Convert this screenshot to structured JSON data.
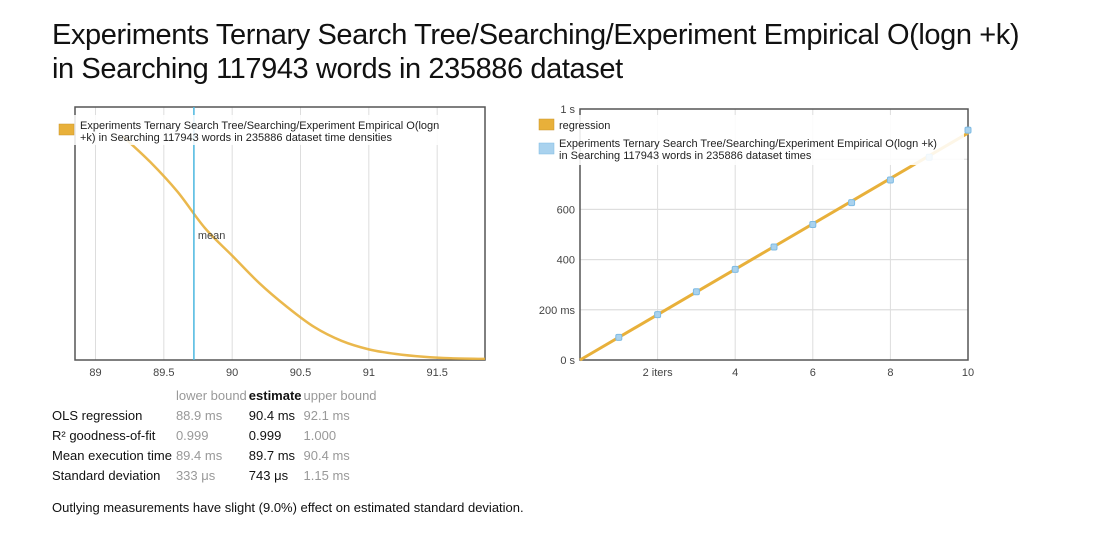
{
  "title": {
    "line1": "Experiments Ternary Search Tree/Searching/Experiment Empirical O(logn +k)",
    "line2": "in Searching 117943 words in 235886 dataset"
  },
  "colors": {
    "series_orange": "#e8b03a",
    "series_blue": "#a9d2ee",
    "mean_line": "#4ab7e0",
    "axis": "#555555",
    "grid": "#dddddd"
  },
  "chart_data": [
    {
      "type": "line",
      "name": "density",
      "xlim": [
        88.85,
        91.85
      ],
      "x_ticks": [
        89,
        89.5,
        90,
        90.5,
        91,
        91.5
      ],
      "x_tick_labels": [
        "89",
        "89.5",
        "90",
        "90.5",
        "91",
        "91.5"
      ],
      "grid": true,
      "legend": {
        "placement": "top-left",
        "entries": [
          "Experiments Ternary Search Tree/Searching/Experiment Empirical O(logn +k) in Searching 117943 words in 235886 dataset time densities"
        ],
        "entry_lines": [
          [
            "Experiments Ternary Search Tree/Searching/Experiment Empirical O(logn",
            "+k) in Searching 117943 words in 235886 dataset time densities"
          ]
        ]
      },
      "series": [
        {
          "name": "Experiments Ternary Search Tree/Searching/Experiment Empirical O(logn +k) in Searching 117943 words in 235886 dataset time densities",
          "x": [
            89.2,
            89.4,
            89.6,
            89.8,
            90.0,
            90.2,
            90.4,
            90.6,
            90.8,
            91.0,
            91.2,
            91.4,
            91.6,
            91.85
          ],
          "y": [
            1.05,
            0.93,
            0.79,
            0.62,
            0.49,
            0.36,
            0.25,
            0.155,
            0.09,
            0.05,
            0.028,
            0.015,
            0.008,
            0.005
          ]
        }
      ],
      "ylim": [
        0,
        1.0
      ],
      "annotations": [
        {
          "label": "mean",
          "x": 89.72
        }
      ]
    },
    {
      "type": "scatter",
      "name": "regression",
      "xlim": [
        0,
        10
      ],
      "ylim": [
        0,
        1000
      ],
      "x_ticks": [
        2,
        4,
        6,
        8,
        10
      ],
      "x_tick_labels": [
        "2 iters",
        "4",
        "6",
        "8",
        "10"
      ],
      "y_ticks": [
        0,
        200,
        400,
        600,
        1000
      ],
      "y_tick_labels": [
        "0 s",
        "200 ms",
        "400",
        "600",
        "1 s"
      ],
      "grid": true,
      "legend": {
        "placement": "top-left",
        "entries": [
          "regression",
          "Experiments Ternary Search Tree/Searching/Experiment Empirical O(logn +k) in Searching 117943 words in 235886 dataset times"
        ],
        "entry_lines": [
          [
            "regression"
          ],
          [
            "Experiments Ternary Search Tree/Searching/Experiment Empirical O(logn +k)",
            "in Searching 117943 words in 235886 dataset times"
          ]
        ]
      },
      "series": [
        {
          "name": "regression",
          "x": [
            0,
            10
          ],
          "y": [
            0,
            904
          ]
        },
        {
          "name": "Experiments Ternary Search Tree/Searching/Experiment Empirical O(logn +k) in Searching 117943 words in 235886 dataset times",
          "x": [
            1,
            2,
            3,
            4,
            5,
            6,
            7,
            8,
            9,
            10
          ],
          "y": [
            90,
            181,
            272,
            361,
            450,
            540,
            627,
            717,
            808,
            916
          ]
        }
      ]
    }
  ],
  "stats": {
    "headers": {
      "lower": "lower bound",
      "estimate": "estimate",
      "upper": "upper bound"
    },
    "rows": [
      {
        "label": "OLS regression",
        "lower": "88.9 ms",
        "estimate": "90.4 ms",
        "upper": "92.1 ms"
      },
      {
        "label": "R² goodness-of-fit",
        "lower": "0.999",
        "estimate": "0.999",
        "upper": "1.000"
      },
      {
        "label": "Mean execution time",
        "lower": "89.4 ms",
        "estimate": "89.7 ms",
        "upper": "90.4 ms"
      },
      {
        "label": "Standard deviation",
        "lower": "333 μs",
        "estimate": "743 μs",
        "upper": "1.15 ms"
      }
    ]
  },
  "note": "Outlying measurements have slight (9.0%) effect on estimated standard deviation."
}
